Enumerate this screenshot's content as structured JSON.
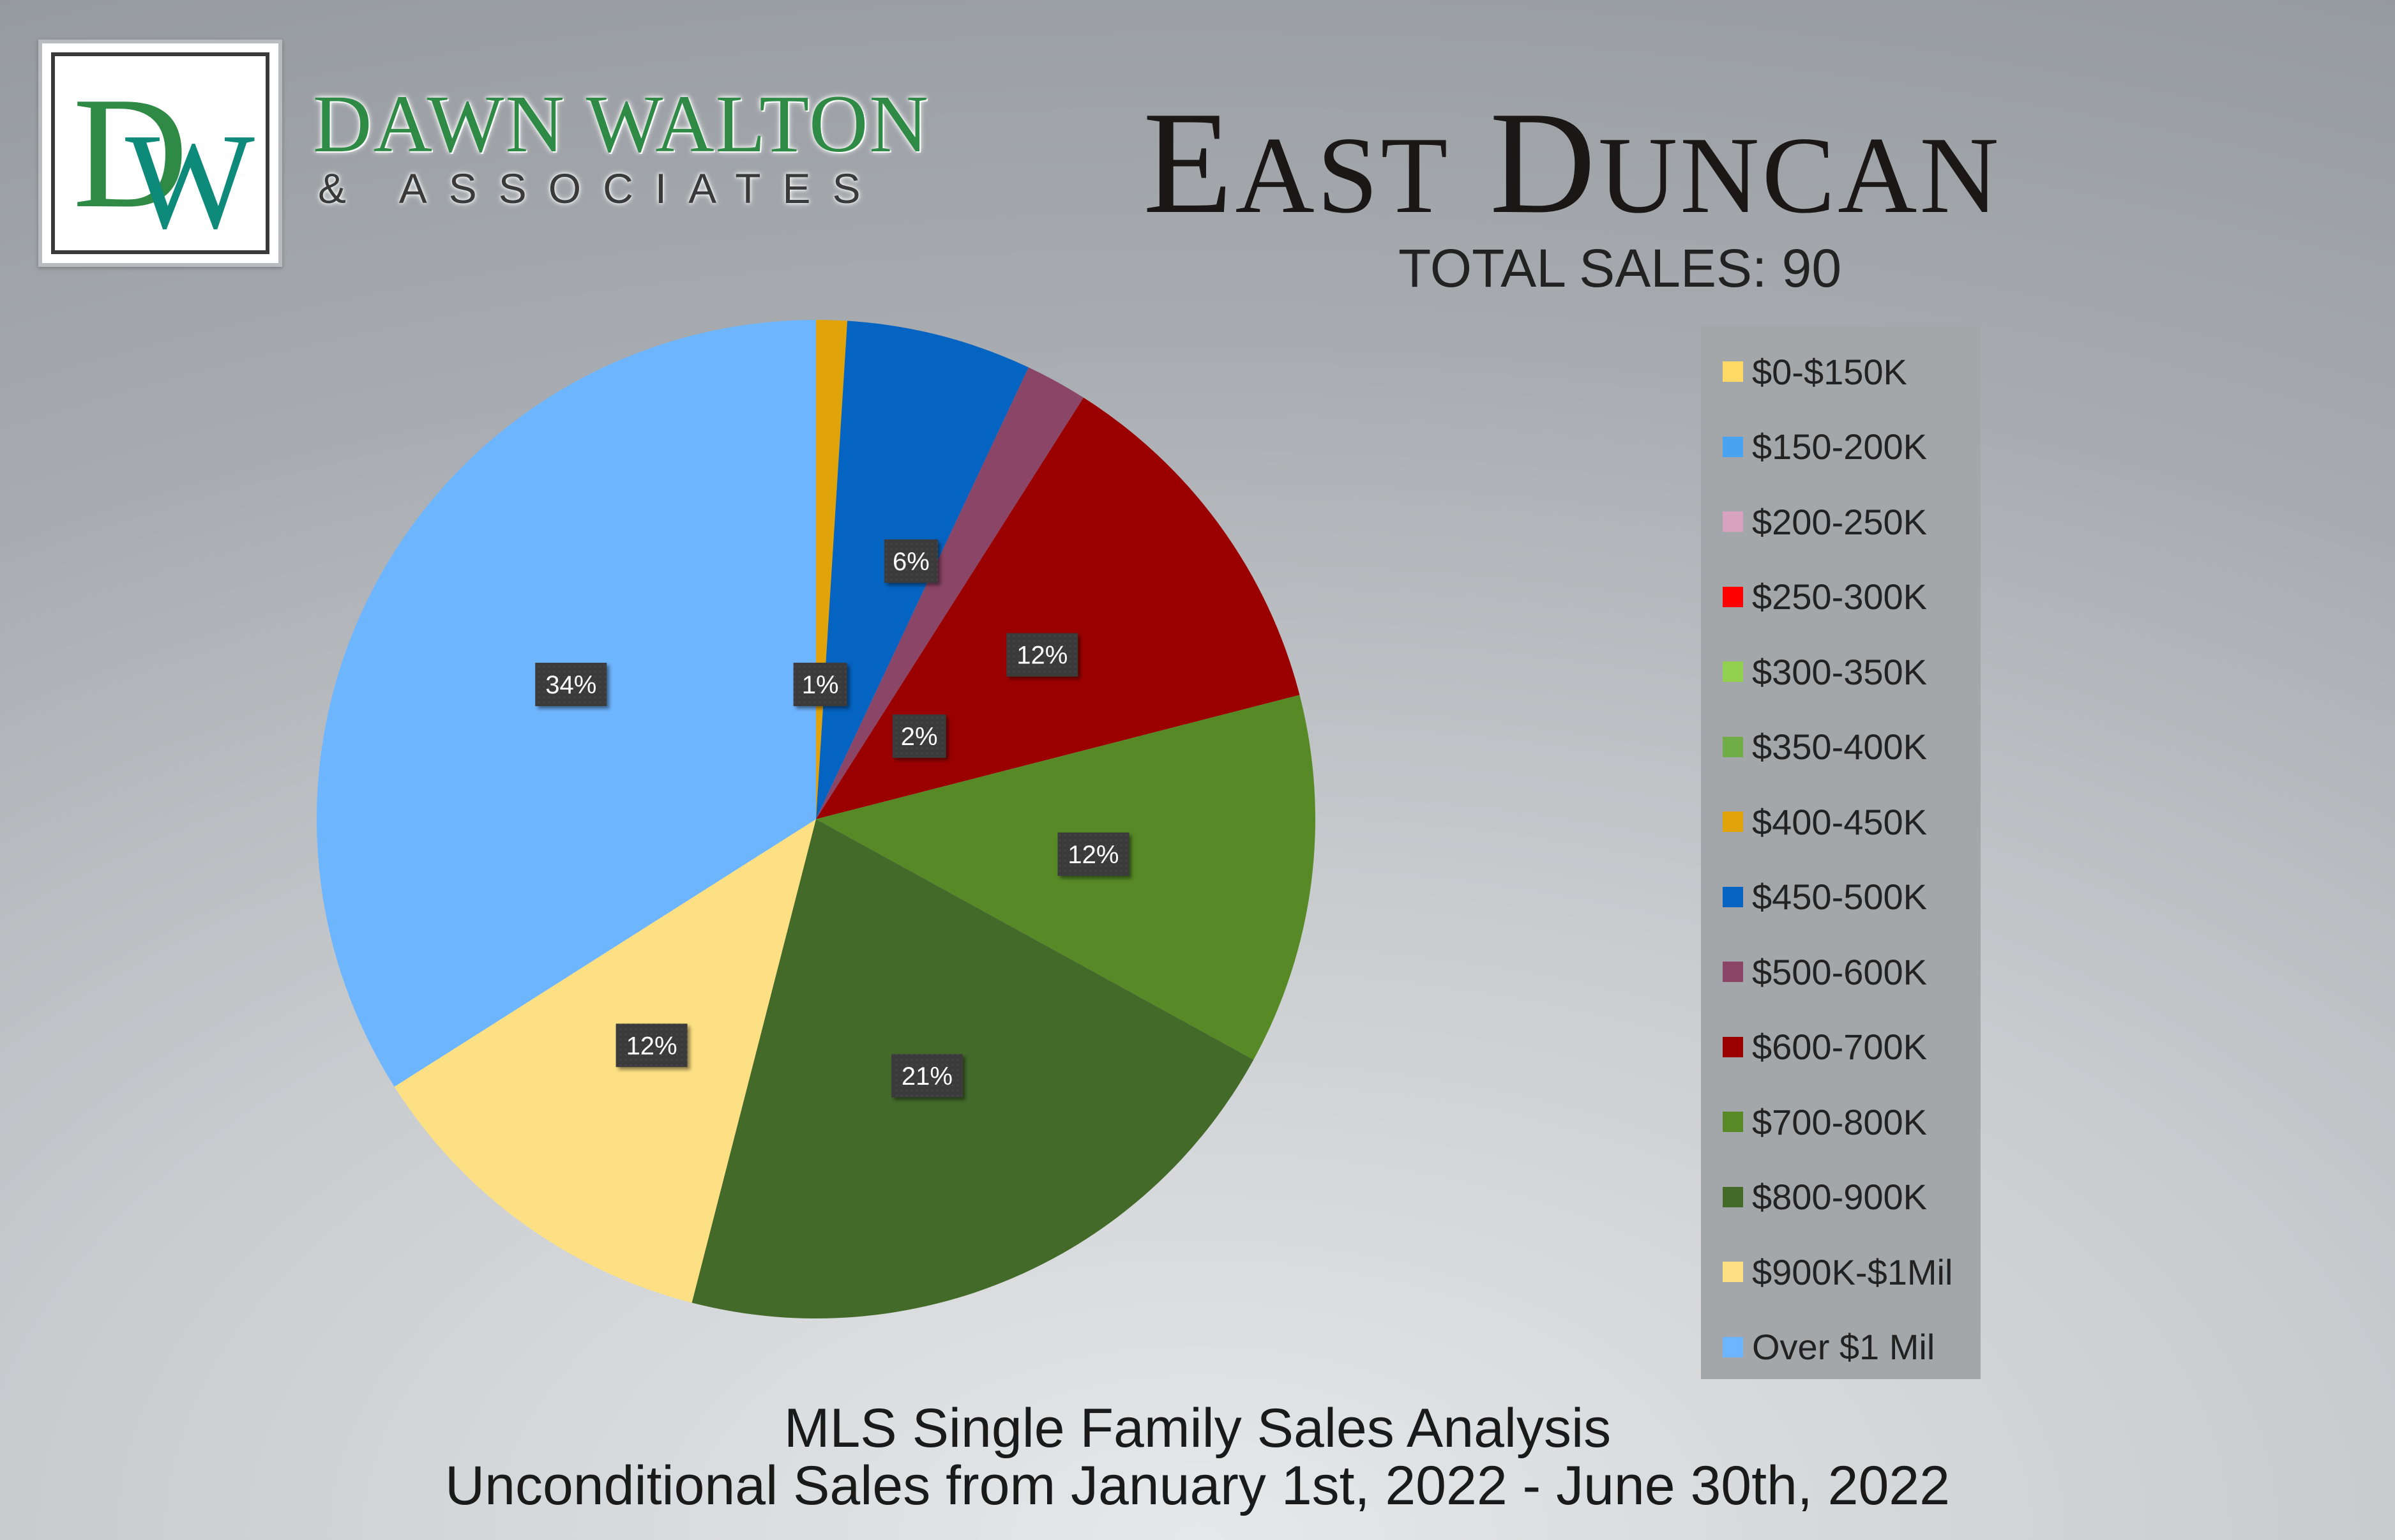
{
  "brand": {
    "monogram": "DW",
    "name": "DAWN WALTON",
    "sub": "& ASSOCIATES",
    "colors": {
      "green": "#2f8a45",
      "teal": "#0e8a7a"
    }
  },
  "title": "East Duncan",
  "subtitle": "TOTAL SALES: 90",
  "footer": {
    "line1": "MLS Single Family Sales Analysis",
    "line2": "Unconditional Sales from January 1st, 2022 - June 30th, 2022"
  },
  "chart_data": {
    "type": "pie",
    "categories": [
      "$0-$150K",
      "$150-200K",
      "$200-250K",
      "$250-300K",
      "$300-350K",
      "$350-400K",
      "$400-450K",
      "$450-500K",
      "$500-600K",
      "$600-700K",
      "$700-800K",
      "$800-900K",
      "$900K-$1Mil",
      "Over $1 Mil"
    ],
    "values": [
      0,
      0,
      0,
      0,
      0,
      0,
      1,
      6,
      2,
      12,
      12,
      21,
      12,
      34
    ],
    "data_labels": [
      "",
      "",
      "",
      "",
      "",
      "",
      "1%",
      "6%",
      "2%",
      "12%",
      "12%",
      "21%",
      "12%",
      "34%"
    ],
    "colors": [
      "#ffd966",
      "#4aa3f0",
      "#d7a1c0",
      "#ff0000",
      "#92d050",
      "#70ad47",
      "#e0a30a",
      "#0563c1",
      "#8b4566",
      "#9b0000",
      "#578a26",
      "#446a2a",
      "#fde083",
      "#6eb5ff"
    ],
    "legend_position": "right"
  }
}
